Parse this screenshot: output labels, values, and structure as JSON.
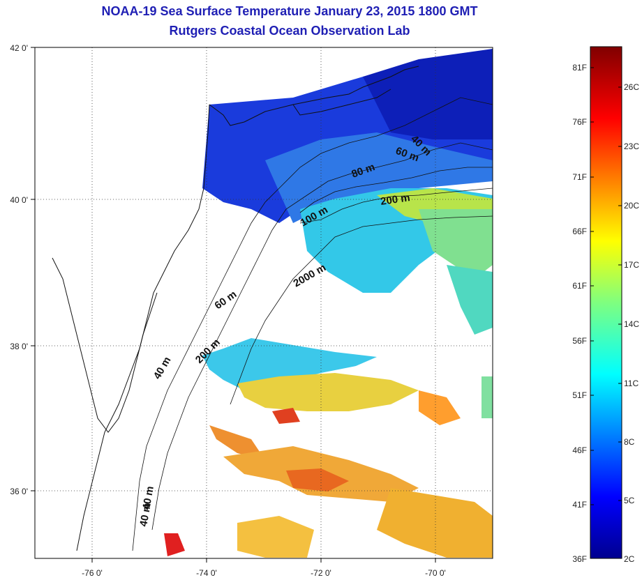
{
  "header": {
    "title": "NOAA-19 Sea Surface Temperature January 23, 2015 1800 GMT",
    "subtitle": "Rutgers Coastal Ocean Observation Lab"
  },
  "map": {
    "lat_labels": [
      "42 0'",
      "40 0'",
      "38 0'",
      "36 0'"
    ],
    "lon_labels": [
      "-76 0'",
      "-74 0'",
      "-72 0'",
      "-70 0'"
    ],
    "isobath_labels": [
      "40 m",
      "60 m",
      "80 m",
      "200 m",
      "100 m",
      "2000 m",
      "60 m",
      "200 m",
      "40 m",
      "40 m",
      "40 m"
    ]
  },
  "colorbar": {
    "f_labels": [
      "81F",
      "76F",
      "71F",
      "66F",
      "61F",
      "56F",
      "51F",
      "46F",
      "41F",
      "36F"
    ],
    "c_labels": [
      "26C",
      "23C",
      "20C",
      "17C",
      "14C",
      "11C",
      "8C",
      "5C",
      "2C"
    ]
  }
}
